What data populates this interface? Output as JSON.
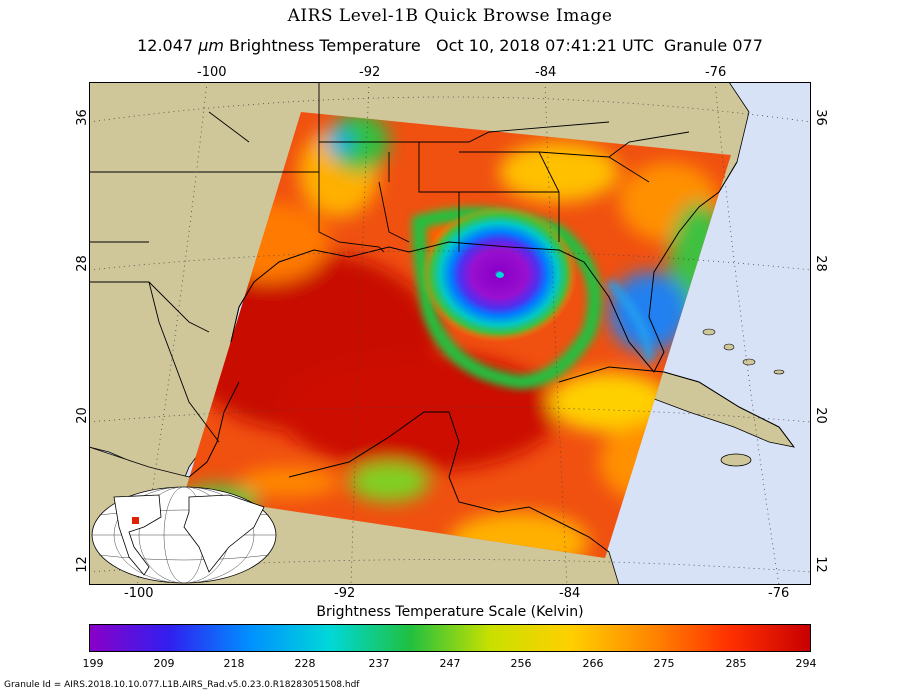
{
  "header": {
    "title": "AIRS Level-1B Quick Browse Image",
    "wavelength": "12.047",
    "unit": "μm",
    "quantity": "Brightness Temperature",
    "datetime": "Oct 10, 2018 07:41:21 UTC",
    "granule": "Granule 077"
  },
  "map": {
    "top_lon_labels": [
      "-100",
      "-92",
      "-84",
      "-76"
    ],
    "bottom_lon_labels": [
      "-100",
      "-92",
      "-84",
      "-76"
    ],
    "left_lat_labels": [
      "36",
      "28",
      "20",
      "12"
    ],
    "right_lat_labels": [
      "36",
      "28",
      "20",
      "12"
    ],
    "colors": {
      "land": "#cfc69a",
      "ocean": "#d8e2f7",
      "border": "#000000",
      "grid": "#555555"
    }
  },
  "scale": {
    "title": "Brightness Temperature Scale (Kelvin)",
    "labels": [
      "199",
      "209",
      "218",
      "228",
      "237",
      "247",
      "256",
      "266",
      "275",
      "285",
      "294"
    ],
    "colors": [
      "#8a00c8",
      "#3020f0",
      "#0090ff",
      "#00d8d8",
      "#20c040",
      "#c8e000",
      "#ffd000",
      "#ff8800",
      "#ff3000",
      "#c80000"
    ]
  },
  "footer": {
    "granule_id": "Granule Id = AIRS.2018.10.10.077.L1B.AIRS_Rad.v5.0.23.0.R18283051508.hdf"
  }
}
